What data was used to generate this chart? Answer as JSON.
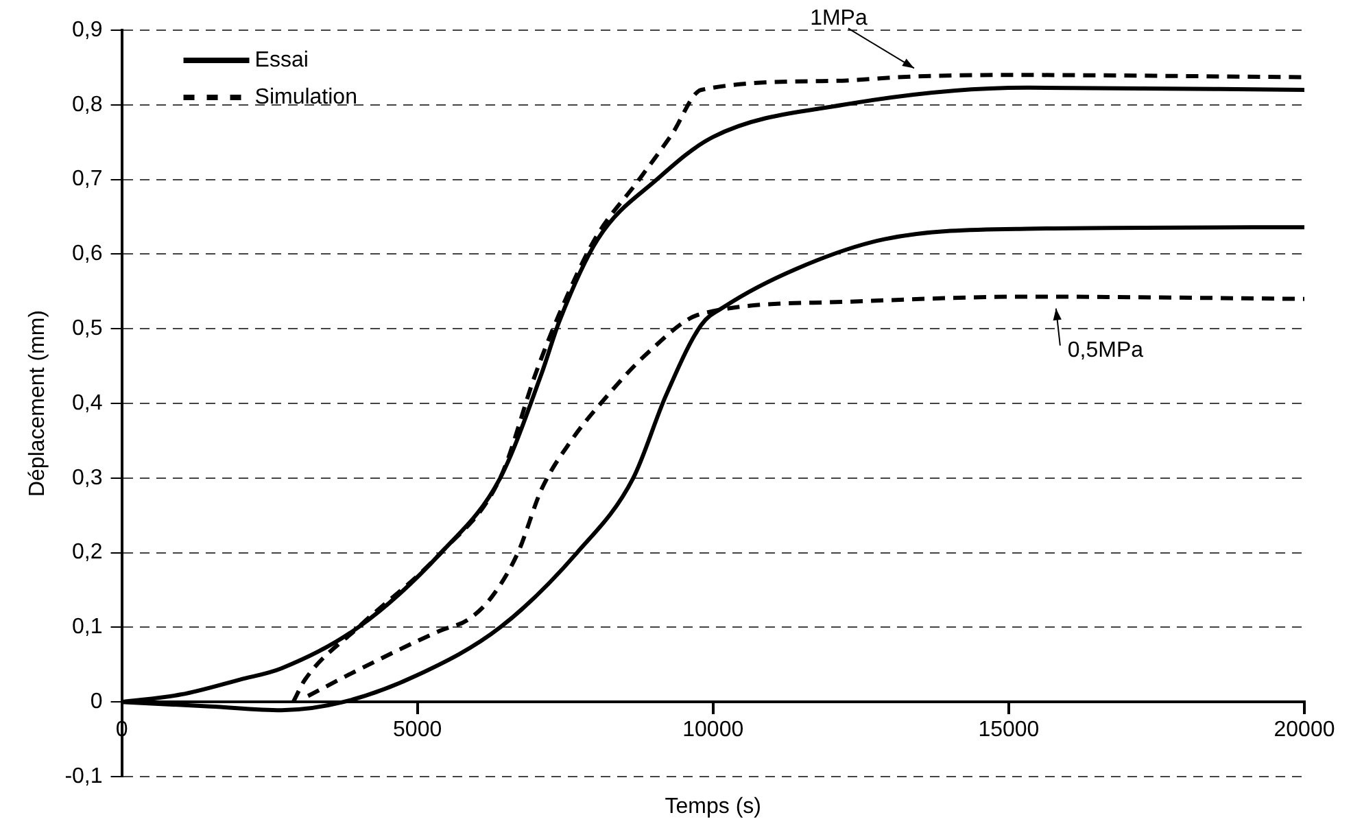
{
  "chart_data": {
    "type": "line",
    "xlabel": "Temps (s)",
    "ylabel": "Déplacement (mm)",
    "xlim": [
      0,
      20000
    ],
    "xticks": [
      0,
      5000,
      10000,
      15000,
      20000
    ],
    "ylim": [
      -0.1,
      0.9
    ],
    "yticks": [
      {
        "value": -0.1,
        "label": "-0,1"
      },
      {
        "value": 0,
        "label": "0"
      },
      {
        "value": 0.1,
        "label": "0,1"
      },
      {
        "value": 0.2,
        "label": "0,2"
      },
      {
        "value": 0.3,
        "label": "0,3"
      },
      {
        "value": 0.4,
        "label": "0,4"
      },
      {
        "value": 0.5,
        "label": "0,5"
      },
      {
        "value": 0.6,
        "label": "0,6"
      },
      {
        "value": 0.7,
        "label": "0,7"
      },
      {
        "value": 0.8,
        "label": "0,8"
      },
      {
        "value": 0.9,
        "label": "0,9"
      }
    ],
    "grid": "y",
    "legend": "top left",
    "marker": "none",
    "series": [
      {
        "name": "Essai",
        "color": "#000000",
        "line_style": "solid",
        "x": [
          0,
          1000,
          2000,
          2700,
          4000,
          5400,
          6400,
          7100,
          7400,
          8050,
          9050,
          10000,
          12200,
          15300,
          20000
        ],
        "values": [
          0,
          0.01,
          0.03,
          0.045,
          0.1,
          0.2,
          0.3,
          0.44,
          0.51,
          0.62,
          0.7,
          0.757,
          0.8,
          0.823,
          0.82
        ]
      },
      {
        "name": "Simulation",
        "color": "#000000",
        "line_style": "dashed",
        "x": [
          2900,
          3100,
          4000,
          5400,
          6400,
          7000,
          7400,
          8000,
          8750,
          9300,
          9800,
          12000,
          13400,
          15000,
          20000
        ],
        "values": [
          0,
          0.03,
          0.1,
          0.2,
          0.3,
          0.44,
          0.52,
          0.62,
          0.7,
          0.76,
          0.82,
          0.832,
          0.838,
          0.84,
          0.837
        ]
      },
      {
        "color": "#000000",
        "line_style": "solid",
        "x": [
          0,
          1500,
          2700,
          3750,
          5000,
          6400,
          7700,
          8650,
          9200,
          9800,
          10200,
          11400,
          12900,
          15300,
          20000
        ],
        "values": [
          0,
          -0.006,
          -0.011,
          0,
          0.036,
          0.1,
          0.2,
          0.3,
          0.41,
          0.505,
          0.53,
          0.58,
          0.62,
          0.634,
          0.636
        ]
      },
      {
        "color": "#000000",
        "line_style": "dashed",
        "x": [
          3150,
          4000,
          5400,
          5850,
          6250,
          6700,
          7100,
          7600,
          8100,
          8900,
          9800,
          12200,
          15300,
          20000
        ],
        "values": [
          0.008,
          0.043,
          0.096,
          0.11,
          0.14,
          0.2,
          0.285,
          0.35,
          0.4,
          0.468,
          0.52,
          0.536,
          0.543,
          0.54
        ]
      }
    ],
    "annotations": [
      {
        "text": "1MPa",
        "x": 13400,
        "y": 0.838
      },
      {
        "text": "0,5MPa",
        "x": 15800,
        "y": 0.54
      }
    ]
  }
}
